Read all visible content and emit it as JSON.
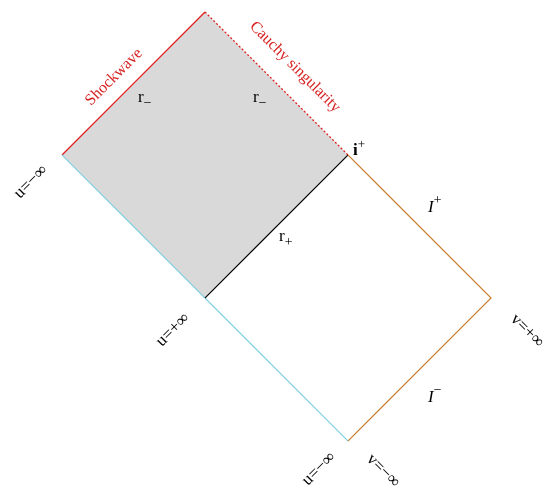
{
  "boundaries": {
    "shockwave": "Shockwave",
    "cauchy": "Cauchy singularity"
  },
  "labels": {
    "r_minus_left": {
      "base": "r",
      "sub": "−"
    },
    "r_minus_right": {
      "base": "r",
      "sub": "−"
    },
    "r_plus": {
      "base": "r",
      "sub": "+"
    },
    "i_plus": {
      "base": "i",
      "sup": "+"
    },
    "scri_plus": {
      "base": "I",
      "sup": "+"
    },
    "scri_minus": {
      "base": "I",
      "sup": "−"
    },
    "u_minus_inf_left": "u=−∞",
    "u_plus_inf": "u=+∞",
    "v_plus_inf": "v=+∞",
    "u_minus_inf_bottom": "u=−∞",
    "v_minus_inf": "v=−∞"
  }
}
